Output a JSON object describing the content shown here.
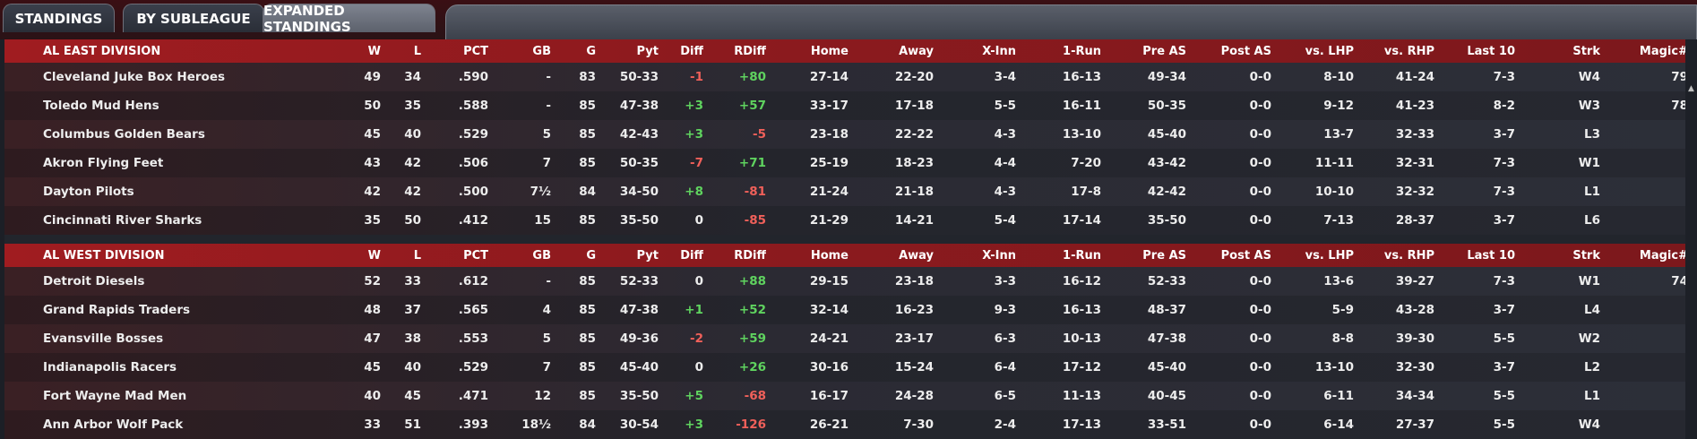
{
  "tabs": [
    {
      "label": "STANDINGS",
      "active": false
    },
    {
      "label": "BY SUBLEAGUE",
      "active": false
    },
    {
      "label": "EXPANDED STANDINGS",
      "active": true
    }
  ],
  "columns": [
    "W",
    "L",
    "PCT",
    "GB",
    "G",
    "Pyt",
    "Diff",
    "RDiff",
    "Home",
    "Away",
    "X-Inn",
    "1-Run",
    "Pre AS",
    "Post AS",
    "vs. LHP",
    "vs. RHP",
    "Last 10",
    "Strk",
    "Magic#"
  ],
  "divisions": [
    {
      "name": "AL EAST DIVISION",
      "teams": [
        {
          "team": "Cleveland Juke Box Heroes",
          "W": "49",
          "L": "34",
          "PCT": ".590",
          "GB": "-",
          "G": "83",
          "Pyt": "50-33",
          "Diff": "-1",
          "RDiff": "+80",
          "Home": "27-14",
          "Away": "22-20",
          "XInn": "3-4",
          "ORun": "16-13",
          "PreAS": "49-34",
          "PostAS": "0-0",
          "LHP": "8-10",
          "RHP": "41-24",
          "L10": "7-3",
          "Strk": "W4",
          "Magic": "79"
        },
        {
          "team": "Toledo  Mud Hens",
          "W": "50",
          "L": "35",
          "PCT": ".588",
          "GB": "-",
          "G": "85",
          "Pyt": "47-38",
          "Diff": "+3",
          "RDiff": "+57",
          "Home": "33-17",
          "Away": "17-18",
          "XInn": "5-5",
          "ORun": "16-11",
          "PreAS": "50-35",
          "PostAS": "0-0",
          "LHP": "9-12",
          "RHP": "41-23",
          "L10": "8-2",
          "Strk": "W3",
          "Magic": "78"
        },
        {
          "team": "Columbus Golden Bears",
          "W": "45",
          "L": "40",
          "PCT": ".529",
          "GB": "5",
          "G": "85",
          "Pyt": "42-43",
          "Diff": "+3",
          "RDiff": "-5",
          "Home": "23-18",
          "Away": "22-22",
          "XInn": "4-3",
          "ORun": "13-10",
          "PreAS": "45-40",
          "PostAS": "0-0",
          "LHP": "13-7",
          "RHP": "32-33",
          "L10": "3-7",
          "Strk": "L3",
          "Magic": ""
        },
        {
          "team": "Akron  Flying Feet",
          "W": "43",
          "L": "42",
          "PCT": ".506",
          "GB": "7",
          "G": "85",
          "Pyt": "50-35",
          "Diff": "-7",
          "RDiff": "+71",
          "Home": "25-19",
          "Away": "18-23",
          "XInn": "4-4",
          "ORun": "7-20",
          "PreAS": "43-42",
          "PostAS": "0-0",
          "LHP": "11-11",
          "RHP": "32-31",
          "L10": "7-3",
          "Strk": "W1",
          "Magic": ""
        },
        {
          "team": "Dayton Pilots",
          "W": "42",
          "L": "42",
          "PCT": ".500",
          "GB": "7½",
          "G": "84",
          "Pyt": "34-50",
          "Diff": "+8",
          "RDiff": "-81",
          "Home": "21-24",
          "Away": "21-18",
          "XInn": "4-3",
          "ORun": "17-8",
          "PreAS": "42-42",
          "PostAS": "0-0",
          "LHP": "10-10",
          "RHP": "32-32",
          "L10": "7-3",
          "Strk": "L1",
          "Magic": ""
        },
        {
          "team": "Cincinnati River Sharks",
          "W": "35",
          "L": "50",
          "PCT": ".412",
          "GB": "15",
          "G": "85",
          "Pyt": "35-50",
          "Diff": "0",
          "RDiff": "-85",
          "Home": "21-29",
          "Away": "14-21",
          "XInn": "5-4",
          "ORun": "17-14",
          "PreAS": "35-50",
          "PostAS": "0-0",
          "LHP": "7-13",
          "RHP": "28-37",
          "L10": "3-7",
          "Strk": "L6",
          "Magic": ""
        }
      ]
    },
    {
      "name": "AL WEST DIVISION",
      "teams": [
        {
          "team": "Detroit Diesels",
          "W": "52",
          "L": "33",
          "PCT": ".612",
          "GB": "-",
          "G": "85",
          "Pyt": "52-33",
          "Diff": "0",
          "RDiff": "+88",
          "Home": "29-15",
          "Away": "23-18",
          "XInn": "3-3",
          "ORun": "16-12",
          "PreAS": "52-33",
          "PostAS": "0-0",
          "LHP": "13-6",
          "RHP": "39-27",
          "L10": "7-3",
          "Strk": "W1",
          "Magic": "74"
        },
        {
          "team": "Grand Rapids Traders",
          "W": "48",
          "L": "37",
          "PCT": ".565",
          "GB": "4",
          "G": "85",
          "Pyt": "47-38",
          "Diff": "+1",
          "RDiff": "+52",
          "Home": "32-14",
          "Away": "16-23",
          "XInn": "9-3",
          "ORun": "16-13",
          "PreAS": "48-37",
          "PostAS": "0-0",
          "LHP": "5-9",
          "RHP": "43-28",
          "L10": "3-7",
          "Strk": "L4",
          "Magic": ""
        },
        {
          "team": "Evansville Bosses",
          "W": "47",
          "L": "38",
          "PCT": ".553",
          "GB": "5",
          "G": "85",
          "Pyt": "49-36",
          "Diff": "-2",
          "RDiff": "+59",
          "Home": "24-21",
          "Away": "23-17",
          "XInn": "6-3",
          "ORun": "10-13",
          "PreAS": "47-38",
          "PostAS": "0-0",
          "LHP": "8-8",
          "RHP": "39-30",
          "L10": "5-5",
          "Strk": "W2",
          "Magic": ""
        },
        {
          "team": "Indianapolis Racers",
          "W": "45",
          "L": "40",
          "PCT": ".529",
          "GB": "7",
          "G": "85",
          "Pyt": "45-40",
          "Diff": "0",
          "RDiff": "+26",
          "Home": "30-16",
          "Away": "15-24",
          "XInn": "6-4",
          "ORun": "17-12",
          "PreAS": "45-40",
          "PostAS": "0-0",
          "LHP": "13-10",
          "RHP": "32-30",
          "L10": "3-7",
          "Strk": "L2",
          "Magic": ""
        },
        {
          "team": "Fort Wayne Mad Men",
          "W": "40",
          "L": "45",
          "PCT": ".471",
          "GB": "12",
          "G": "85",
          "Pyt": "35-50",
          "Diff": "+5",
          "RDiff": "-68",
          "Home": "16-17",
          "Away": "24-28",
          "XInn": "6-5",
          "ORun": "11-13",
          "PreAS": "40-45",
          "PostAS": "0-0",
          "LHP": "6-11",
          "RHP": "34-34",
          "L10": "5-5",
          "Strk": "L1",
          "Magic": ""
        },
        {
          "team": "Ann Arbor Wolf Pack",
          "W": "33",
          "L": "51",
          "PCT": ".393",
          "GB": "18½",
          "G": "84",
          "Pyt": "30-54",
          "Diff": "+3",
          "RDiff": "-126",
          "Home": "26-21",
          "Away": "7-30",
          "XInn": "2-4",
          "ORun": "17-13",
          "PreAS": "33-51",
          "PostAS": "0-0",
          "LHP": "6-14",
          "RHP": "27-37",
          "L10": "5-5",
          "Strk": "W4",
          "Magic": ""
        }
      ]
    }
  ]
}
